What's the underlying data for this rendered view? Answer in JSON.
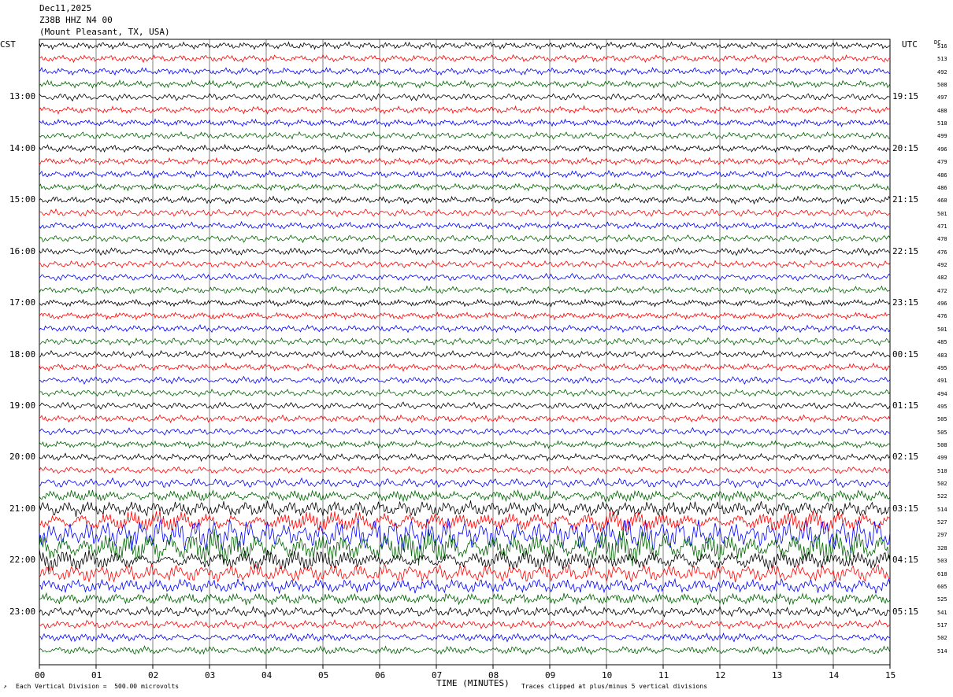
{
  "header": {
    "date": "Dec11,2025",
    "station": "Z38B HHZ N4 00",
    "location": "(Mount Pleasant, TX, USA)"
  },
  "left_axis_title": "CST",
  "right_axis_title": "UTC",
  "dc_title": "DC",
  "cst_labels": [
    "13:00",
    "14:00",
    "15:00",
    "16:00",
    "17:00",
    "18:00",
    "19:00",
    "20:00",
    "21:00",
    "22:00",
    "23:00"
  ],
  "utc_labels": [
    "19:15",
    "20:15",
    "21:15",
    "22:15",
    "23:15",
    "00:15",
    "01:15",
    "02:15",
    "03:15",
    "04:15",
    "05:15"
  ],
  "x_ticks": [
    "00",
    "01",
    "02",
    "03",
    "04",
    "05",
    "06",
    "07",
    "08",
    "09",
    "10",
    "11",
    "12",
    "13",
    "14",
    "15"
  ],
  "x_axis_label": "TIME (MINUTES)",
  "footer_left": "Each Vertical Division =  500.00 microvolts",
  "footer_right": "Traces clipped at plus/minus 5 vertical divisions",
  "colors": {
    "black": "#000000",
    "red": "#ff0000",
    "blue": "#0000ff",
    "green": "#006400",
    "grid": "#000000"
  },
  "chart_data": {
    "type": "line",
    "title": "Dec11,2025 Z38B HHZ N4 00 (Mount Pleasant, TX, USA)",
    "xlabel": "TIME (MINUTES)",
    "xlim": [
      0,
      15
    ],
    "trace_count": 48,
    "traces_per_hour": 4,
    "color_cycle": [
      "black",
      "red",
      "blue",
      "green"
    ],
    "dc_offsets": [
      516,
      513,
      492,
      508,
      497,
      488,
      518,
      499,
      496,
      479,
      486,
      486,
      460,
      501,
      471,
      470,
      476,
      492,
      482,
      472,
      496,
      476,
      501,
      485,
      483,
      495,
      491,
      494,
      495,
      505,
      505,
      508,
      499,
      510,
      502,
      522,
      514,
      527,
      297,
      328,
      503,
      618,
      605,
      525,
      541,
      517,
      502,
      514
    ],
    "amplitude_levels": [
      1,
      1,
      1,
      1,
      1,
      1,
      1,
      1,
      1,
      1,
      1,
      1,
      1,
      1,
      1,
      1,
      1,
      1,
      1,
      1,
      1,
      1,
      1,
      1,
      1,
      1,
      1,
      1,
      1,
      1,
      1,
      1,
      1,
      1,
      1.3,
      1.6,
      2.2,
      3.2,
      5,
      5,
      3,
      2.5,
      2,
      1.6,
      1.4,
      1.2,
      1.1,
      1.1
    ]
  }
}
